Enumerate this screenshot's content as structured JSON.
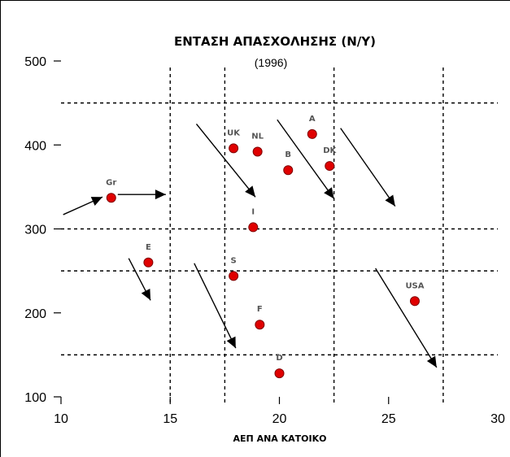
{
  "chart_data": {
    "type": "scatter",
    "title": "ΕΝΤΑΣΗ ΑΠΑΣΧΟΛΗΣΗΣ (Ν/Υ)",
    "subtitle": "(1996)",
    "xlabel": "ΑΕΠ ΑΝΑ ΚΑΤΟΙΚΟ",
    "ylabel": "",
    "xlim": [
      10,
      30
    ],
    "ylim": [
      100,
      500
    ],
    "xticks": [
      "10",
      "15",
      "20",
      "25",
      "30"
    ],
    "yticks": [
      "500",
      "400",
      "300",
      "200",
      "100"
    ],
    "grid": {
      "x": [
        15,
        17.5,
        22.5,
        27.5
      ],
      "y": [
        450,
        300,
        250,
        150
      ]
    },
    "points": [
      {
        "label": "Gr",
        "x": 12.3,
        "y": 337
      },
      {
        "label": "E",
        "x": 14.0,
        "y": 260
      },
      {
        "label": "UK",
        "x": 17.9,
        "y": 396
      },
      {
        "label": "NL",
        "x": 19.0,
        "y": 392
      },
      {
        "label": "B",
        "x": 20.4,
        "y": 370
      },
      {
        "label": "A",
        "x": 21.5,
        "y": 413
      },
      {
        "label": "DK",
        "x": 22.3,
        "y": 375
      },
      {
        "label": "I",
        "x": 18.8,
        "y": 302
      },
      {
        "label": "S",
        "x": 17.9,
        "y": 244
      },
      {
        "label": "F",
        "x": 19.1,
        "y": 186
      },
      {
        "label": "D",
        "x": 20.0,
        "y": 128
      },
      {
        "label": "USA",
        "x": 26.2,
        "y": 214
      }
    ],
    "arrows": [
      {
        "from": [
          10.1,
          317
        ],
        "to": [
          11.9,
          338
        ]
      },
      {
        "from": [
          12.6,
          341
        ],
        "to": [
          14.8,
          341
        ]
      },
      {
        "from": [
          13.1,
          265
        ],
        "to": [
          14.1,
          215
        ]
      },
      {
        "from": [
          16.2,
          425
        ],
        "to": [
          18.9,
          338
        ]
      },
      {
        "from": [
          16.1,
          259
        ],
        "to": [
          18.0,
          158
        ]
      },
      {
        "from": [
          19.9,
          430
        ],
        "to": [
          22.5,
          336
        ]
      },
      {
        "from": [
          22.8,
          420
        ],
        "to": [
          25.3,
          327
        ]
      },
      {
        "from": [
          24.4,
          253
        ],
        "to": [
          27.2,
          135
        ]
      }
    ]
  }
}
